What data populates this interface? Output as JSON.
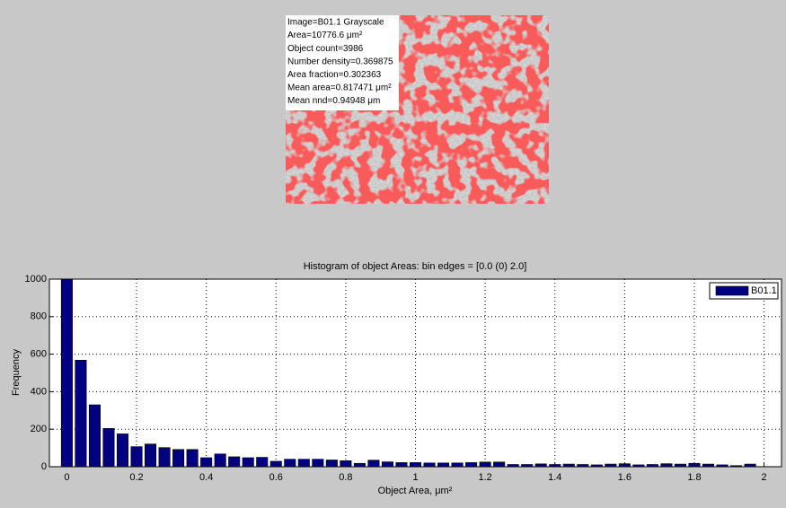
{
  "image_panel": {
    "lines": [
      "Image=B01.1 Grayscale",
      "Area=10776.6 μm²",
      "Object count=3986",
      "Number density=0.369875",
      "Area fraction=0.302363",
      "Mean area=0.817471 μm²",
      "Mean nnd=0.94948 μm"
    ]
  },
  "chart_data": {
    "type": "histogram",
    "title": "Histogram of object Areas: bin edges = [0.0 (0) 2.0]",
    "x_label": "Object Area, μm²",
    "y_label": "Frequency",
    "bins": [
      -0.02,
      0.02,
      0.06,
      0.1,
      0.14,
      0.18,
      0.22,
      0.26,
      0.3,
      0.34,
      0.38,
      0.42,
      0.46,
      0.5,
      0.54,
      0.58,
      0.62,
      0.66,
      0.7,
      0.74,
      0.78,
      0.82,
      0.86,
      0.9,
      0.94,
      0.98,
      1.02,
      1.06,
      1.1,
      1.14,
      1.18,
      1.22,
      1.26,
      1.3,
      1.34,
      1.38,
      1.42,
      1.46,
      1.5,
      1.54,
      1.58,
      1.62,
      1.66,
      1.7,
      1.74,
      1.78,
      1.82,
      1.86,
      1.9,
      1.94,
      1.98
    ],
    "series": [
      {
        "name": "B01.1",
        "color": "#000080",
        "values": [
          1000,
          568,
          330,
          204,
          175,
          107,
          121,
          102,
          92,
          92,
          48,
          68,
          53,
          48,
          50,
          29,
          40,
          40,
          40,
          36,
          32,
          18,
          35,
          26,
          22,
          22,
          20,
          20,
          20,
          22,
          25,
          25,
          12,
          12,
          15,
          12,
          14,
          12,
          10,
          14,
          16,
          10,
          12,
          16,
          14,
          18,
          14,
          10,
          6,
          14
        ]
      }
    ],
    "xlim": [
      -0.05,
      2.05
    ],
    "ylim": [
      0,
      1000
    ],
    "xticks": [
      0,
      0.2,
      0.4,
      0.6,
      0.8,
      1,
      1.2,
      1.4,
      1.6,
      1.8,
      2
    ],
    "yticks": [
      0,
      200,
      400,
      600,
      800,
      1000
    ],
    "grid": true,
    "legend": "upper right"
  }
}
